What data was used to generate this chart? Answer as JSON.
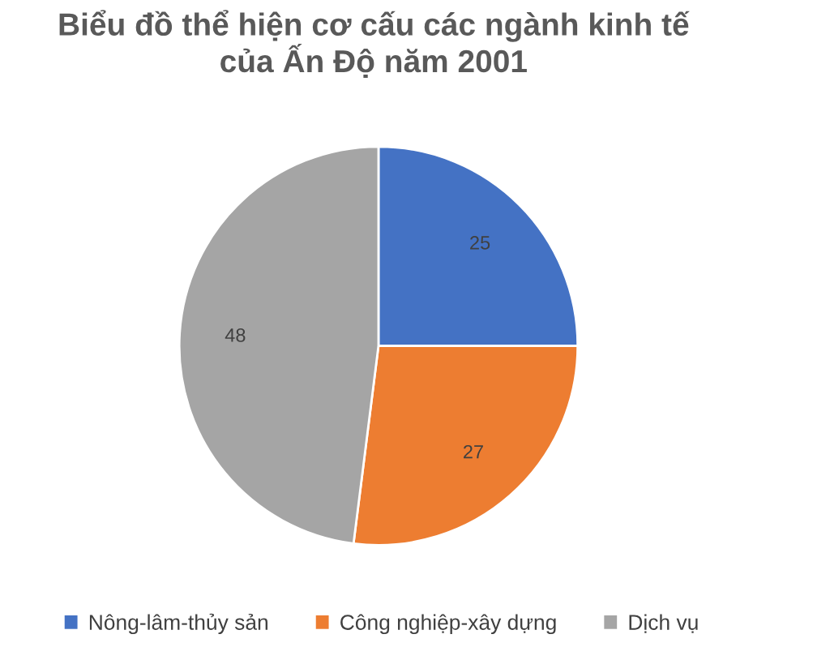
{
  "chart_data": {
    "type": "pie",
    "title": "Biểu đồ thể hiện cơ cấu các ngành kinh tế\ncủa Ấn Độ năm 2001",
    "categories": [
      "Nông-lâm-thủy sản",
      "Công nghiệp-xây dựng",
      "Dịch vụ"
    ],
    "values": [
      25,
      27,
      48
    ],
    "colors": [
      "#4472c4",
      "#ed7d31",
      "#a5a5a5"
    ],
    "data_labels": true,
    "legend": "bottom"
  }
}
